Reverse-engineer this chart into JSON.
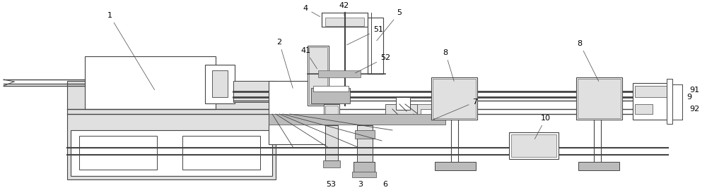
{
  "bg_color": "#ffffff",
  "lc": "#444444",
  "gf": "#bbbbbb",
  "lg": "#e0e0e0",
  "fig_width": 10.0,
  "fig_height": 2.7
}
